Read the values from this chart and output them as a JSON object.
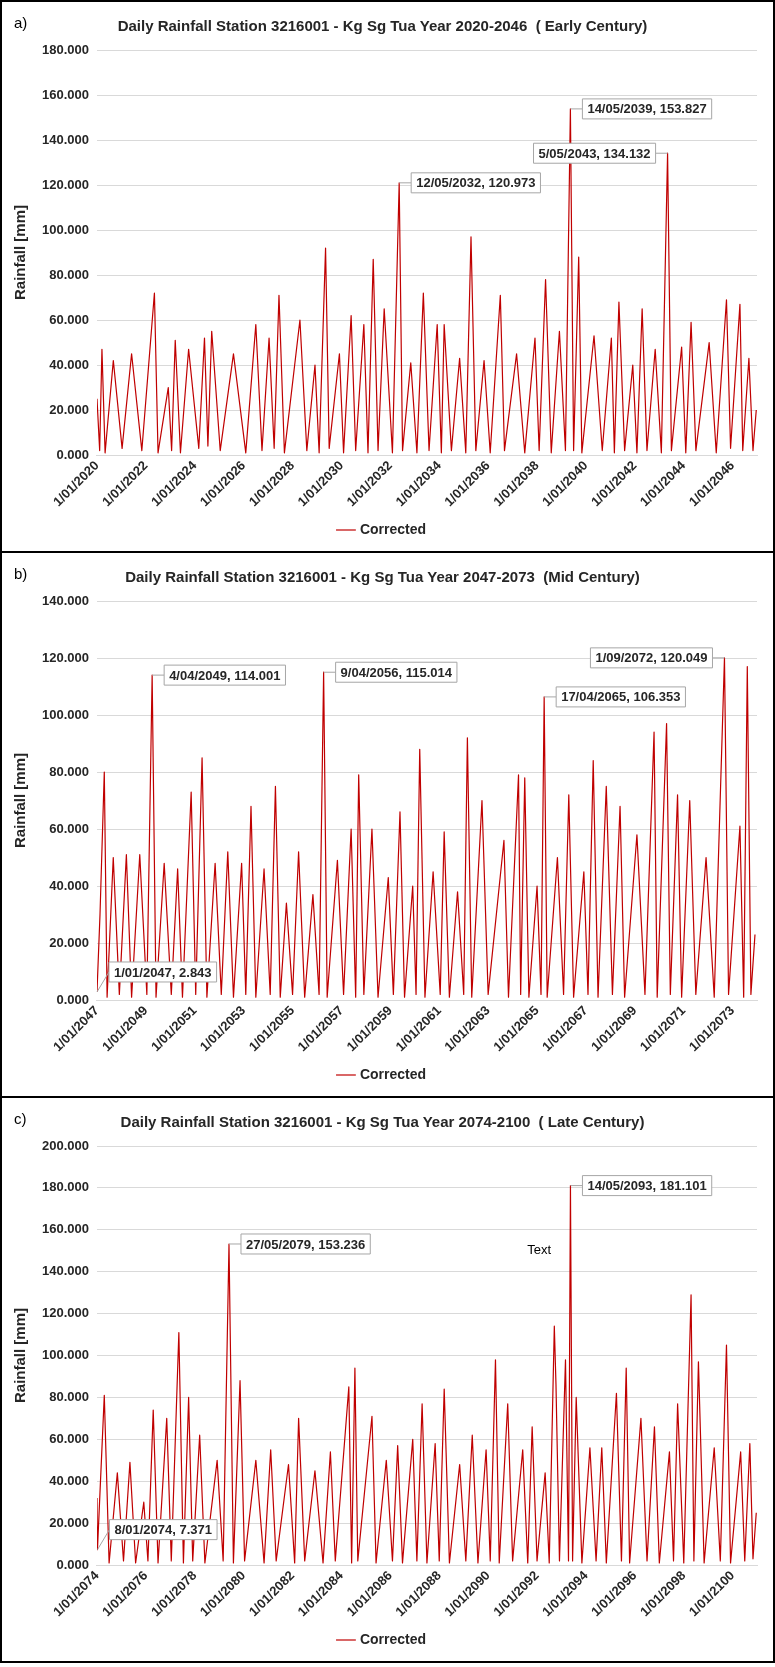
{
  "chart_data": [
    {
      "type": "line",
      "title": "Daily Rainfall Station 3216001 - Kg Sg Tua Year 2020-2046  ( Early Century)",
      "ylabel": "Rainfall [mm]",
      "annotations": [
        "a)",
        {
          "text": "12/05/2032, 120.973",
          "x": "2032-05-12",
          "y": 120.973
        },
        {
          "text": "14/05/2039, 153.827",
          "x": "2039-05-14",
          "y": 153.827
        },
        {
          "text": "5/05/2043, 134.132",
          "x": "2043-05-05",
          "y": 134.132
        }
      ],
      "xlim": [
        "2020-01-01",
        "2046-12-31"
      ],
      "xticks": [
        {
          "value": "2020-01-01",
          "label": "1/01/2020"
        },
        {
          "value": "2022-01-01",
          "label": "1/01/2022"
        },
        {
          "value": "2024-01-01",
          "label": "1/01/2024"
        },
        {
          "value": "2026-01-01",
          "label": "1/01/2026"
        },
        {
          "value": "2028-01-01",
          "label": "1/01/2028"
        },
        {
          "value": "2030-01-01",
          "label": "1/01/2030"
        },
        {
          "value": "2032-01-01",
          "label": "1/01/2032"
        },
        {
          "value": "2034-01-01",
          "label": "1/01/2034"
        },
        {
          "value": "2036-01-01",
          "label": "1/01/2036"
        },
        {
          "value": "2038-01-01",
          "label": "1/01/2038"
        },
        {
          "value": "2040-01-01",
          "label": "1/01/2040"
        },
        {
          "value": "2042-01-01",
          "label": "1/01/2042"
        },
        {
          "value": "2044-01-01",
          "label": "1/01/2044"
        },
        {
          "value": "2046-01-01",
          "label": "1/01/2046"
        }
      ],
      "ylim": [
        0,
        180
      ],
      "yticks": [
        {
          "value": 0,
          "label": "0.000"
        },
        {
          "value": 20,
          "label": "20.000"
        },
        {
          "value": 40,
          "label": "40.000"
        },
        {
          "value": 60,
          "label": "60.000"
        },
        {
          "value": 80,
          "label": "80.000"
        },
        {
          "value": 100,
          "label": "100.000"
        },
        {
          "value": 120,
          "label": "120.000"
        },
        {
          "value": 140,
          "label": "140.000"
        },
        {
          "value": 160,
          "label": "160.000"
        },
        {
          "value": 180,
          "label": "180.000"
        }
      ],
      "grid": "y",
      "legend": "bottom",
      "x": [
        "2020-01-01",
        "2020-02-10",
        "2020-03-15",
        "2020-05-01",
        "2020-09-01",
        "2021-01-10",
        "2021-06-01",
        "2021-11-01",
        "2022-05-08",
        "2022-07-01",
        "2022-12-01",
        "2023-01-20",
        "2023-03-15",
        "2023-06-01",
        "2023-10-01",
        "2024-03-01",
        "2024-05-25",
        "2024-07-15",
        "2024-09-10",
        "2025-01-15",
        "2025-08-01",
        "2026-02-01",
        "2026-07-01",
        "2026-10-01",
        "2027-01-15",
        "2027-04-01",
        "2027-06-12",
        "2027-09-01",
        "2028-04-20",
        "2028-08-01",
        "2028-12-01",
        "2029-02-01",
        "2029-05-08",
        "2029-07-01",
        "2029-12-01",
        "2030-02-01",
        "2030-05-25",
        "2030-08-01",
        "2030-12-01",
        "2031-02-01",
        "2031-04-20",
        "2031-07-01",
        "2031-10-01",
        "2032-02-01",
        "2032-05-12",
        "2032-07-01",
        "2032-11-01",
        "2033-02-01",
        "2033-05-08",
        "2033-08-01",
        "2033-12-01",
        "2034-02-01",
        "2034-03-15",
        "2034-07-01",
        "2034-11-01",
        "2035-02-01",
        "2035-04-20",
        "2035-07-01",
        "2035-11-01",
        "2036-02-01",
        "2036-07-01",
        "2036-09-01",
        "2037-03-01",
        "2037-07-01",
        "2037-12-01",
        "2038-02-01",
        "2038-05-08",
        "2038-08-01",
        "2038-12-01",
        "2039-03-01",
        "2039-05-14",
        "2039-07-01",
        "2039-09-15",
        "2039-11-01",
        "2040-05-01",
        "2040-09-01",
        "2041-01-15",
        "2041-03-01",
        "2041-05-08",
        "2041-08-01",
        "2041-12-01",
        "2042-02-01",
        "2042-04-20",
        "2042-07-01",
        "2042-11-01",
        "2043-02-01",
        "2043-05-05",
        "2043-07-01",
        "2043-12-01",
        "2044-02-01",
        "2044-04-20",
        "2044-07-01",
        "2045-01-15",
        "2045-05-01",
        "2045-10-01",
        "2045-12-01",
        "2046-04-20",
        "2046-06-01",
        "2046-09-01",
        "2046-11-01",
        "2046-12-20"
      ],
      "series": [
        {
          "name": "Corrected",
          "color": "#c00000",
          "values": [
            25,
            2,
            47,
            1,
            42,
            3,
            45,
            2,
            72,
            1,
            30,
            2,
            51,
            1,
            47,
            3,
            52,
            4,
            55,
            2,
            45,
            1,
            58,
            2,
            52,
            3,
            71,
            1,
            60,
            2,
            40,
            1,
            92,
            3,
            45,
            1,
            62,
            2,
            58,
            1,
            87,
            2,
            65,
            1,
            120.973,
            2,
            41,
            1,
            72,
            2,
            58,
            1,
            58,
            2,
            43,
            1,
            97,
            2,
            42,
            1,
            71,
            2,
            45,
            1,
            52,
            2,
            78,
            1,
            55,
            2,
            153.827,
            2,
            88,
            1,
            53,
            2,
            52,
            1,
            68,
            2,
            40,
            1,
            65,
            2,
            47,
            1,
            134.132,
            2,
            48,
            1,
            59,
            2,
            50,
            1,
            69,
            3,
            67,
            2,
            43,
            2,
            20
          ]
        }
      ]
    },
    {
      "type": "line",
      "title": "Daily Rainfall Station 3216001 - Kg Sg Tua Year 2047-2073  (Mid Century)",
      "ylabel": "Rainfall [mm]",
      "annotations": [
        "b)",
        {
          "text": "1/01/2047, 2.843",
          "x": "2047-01-01",
          "y": 2.843
        },
        {
          "text": "4/04/2049, 114.001",
          "x": "2049-04-04",
          "y": 114.001
        },
        {
          "text": "9/04/2056, 115.014",
          "x": "2056-04-09",
          "y": 115.014
        },
        {
          "text": "17/04/2065, 106.353",
          "x": "2065-04-17",
          "y": 106.353
        },
        {
          "text": "1/09/2072, 120.049",
          "x": "2072-09-01",
          "y": 120.049
        }
      ],
      "xlim": [
        "2047-01-01",
        "2073-12-31"
      ],
      "xticks": [
        {
          "value": "2047-01-01",
          "label": "1/01/2047"
        },
        {
          "value": "2049-01-01",
          "label": "1/01/2049"
        },
        {
          "value": "2051-01-01",
          "label": "1/01/2051"
        },
        {
          "value": "2053-01-01",
          "label": "1/01/2053"
        },
        {
          "value": "2055-01-01",
          "label": "1/01/2055"
        },
        {
          "value": "2057-01-01",
          "label": "1/01/2057"
        },
        {
          "value": "2059-01-01",
          "label": "1/01/2059"
        },
        {
          "value": "2061-01-01",
          "label": "1/01/2061"
        },
        {
          "value": "2063-01-01",
          "label": "1/01/2063"
        },
        {
          "value": "2065-01-01",
          "label": "1/01/2065"
        },
        {
          "value": "2067-01-01",
          "label": "1/01/2067"
        },
        {
          "value": "2069-01-01",
          "label": "1/01/2069"
        },
        {
          "value": "2071-01-01",
          "label": "1/01/2071"
        },
        {
          "value": "2073-01-01",
          "label": "1/01/2073"
        }
      ],
      "ylim": [
        0,
        140
      ],
      "yticks": [
        {
          "value": 0,
          "label": "0.000"
        },
        {
          "value": 20,
          "label": "20.000"
        },
        {
          "value": 40,
          "label": "40.000"
        },
        {
          "value": 60,
          "label": "60.000"
        },
        {
          "value": 80,
          "label": "80.000"
        },
        {
          "value": 100,
          "label": "100.000"
        },
        {
          "value": 120,
          "label": "120.000"
        },
        {
          "value": 140,
          "label": "140.000"
        }
      ],
      "grid": "y",
      "legend": "bottom",
      "x": [
        "2047-01-01",
        "2047-02-15",
        "2047-04-20",
        "2047-06-01",
        "2047-09-01",
        "2047-12-01",
        "2048-03-15",
        "2048-06-01",
        "2048-10-01",
        "2049-01-15",
        "2049-04-04",
        "2049-06-01",
        "2049-10-01",
        "2050-01-15",
        "2050-04-20",
        "2050-07-01",
        "2050-11-08",
        "2051-01-15",
        "2051-04-20",
        "2051-07-01",
        "2051-11-01",
        "2052-02-01",
        "2052-05-08",
        "2052-08-01",
        "2052-12-01",
        "2053-02-01",
        "2053-04-20",
        "2053-07-01",
        "2053-11-01",
        "2054-02-01",
        "2054-04-20",
        "2054-07-01",
        "2054-10-01",
        "2055-01-01",
        "2055-04-01",
        "2055-07-01",
        "2055-11-01",
        "2056-02-01",
        "2056-04-09",
        "2056-06-01",
        "2056-11-01",
        "2057-02-01",
        "2057-05-25",
        "2057-08-01",
        "2057-09-15",
        "2057-12-01",
        "2058-04-01",
        "2058-07-01",
        "2058-12-01",
        "2059-02-15",
        "2059-05-25",
        "2059-08-01",
        "2059-12-01",
        "2060-01-20",
        "2060-03-15",
        "2060-06-01",
        "2060-10-01",
        "2061-01-15",
        "2061-03-15",
        "2061-06-01",
        "2061-10-01",
        "2062-01-01",
        "2062-02-25",
        "2062-05-01",
        "2062-10-01",
        "2063-01-01",
        "2063-08-25",
        "2063-11-01",
        "2064-03-30",
        "2064-05-01",
        "2064-07-01",
        "2064-09-01",
        "2065-01-01",
        "2065-03-01",
        "2065-04-17",
        "2065-06-01",
        "2065-11-01",
        "2066-02-01",
        "2066-04-20",
        "2066-07-01",
        "2066-12-01",
        "2067-02-01",
        "2067-04-20",
        "2067-07-01",
        "2067-11-01",
        "2068-02-01",
        "2068-05-25",
        "2068-08-01",
        "2069-02-01",
        "2069-06-01",
        "2069-10-15",
        "2069-12-01",
        "2070-04-20",
        "2070-06-15",
        "2070-10-01",
        "2070-12-01",
        "2071-04-01",
        "2071-07-01",
        "2071-12-01",
        "2072-04-01",
        "2072-09-01",
        "2072-11-01",
        "2073-04-20",
        "2073-06-15",
        "2073-08-08",
        "2073-10-01",
        "2073-12-01"
      ],
      "series": [
        {
          "name": "Corrected",
          "color": "#c00000",
          "values": [
            2.843,
            30,
            80,
            1,
            50,
            2,
            51,
            1,
            51,
            2,
            114.001,
            1,
            48,
            2,
            46,
            1,
            73,
            2,
            85,
            1,
            48,
            2,
            52,
            1,
            48,
            2,
            68,
            1,
            46,
            2,
            75,
            1,
            34,
            2,
            52,
            1,
            37,
            2,
            115.014,
            1,
            49,
            2,
            60,
            1,
            79,
            2,
            60,
            1,
            43,
            2,
            66,
            1,
            40,
            2,
            88,
            1,
            45,
            2,
            59,
            1,
            38,
            2,
            92,
            1,
            70,
            2,
            56,
            1,
            79,
            2,
            78,
            1,
            40,
            2,
            106.353,
            1,
            50,
            2,
            72,
            1,
            45,
            2,
            84,
            1,
            75,
            2,
            68,
            1,
            58,
            2,
            94,
            1,
            97,
            2,
            72,
            1,
            70,
            2,
            50,
            1,
            120.049,
            2,
            61,
            1,
            117,
            2,
            23
          ]
        }
      ]
    },
    {
      "type": "line",
      "title": "Daily Rainfall Station 3216001 - Kg Sg Tua Year 2074-2100  ( Late Century)",
      "ylabel": "Rainfall [mm]",
      "annotations": [
        "c)",
        {
          "text": "8/01/2074, 7.371",
          "x": "2074-01-08",
          "y": 7.371
        },
        {
          "text": "27/05/2079, 153.236",
          "x": "2079-05-27",
          "y": 153.236
        },
        {
          "text": "14/05/2093, 181.101",
          "x": "2093-05-14",
          "y": 181.101
        },
        "Text"
      ],
      "xlim": [
        "2074-01-01",
        "2100-12-31"
      ],
      "xticks": [
        {
          "value": "2074-01-01",
          "label": "1/01/2074"
        },
        {
          "value": "2076-01-01",
          "label": "1/01/2076"
        },
        {
          "value": "2078-01-01",
          "label": "1/01/2078"
        },
        {
          "value": "2080-01-01",
          "label": "1/01/2080"
        },
        {
          "value": "2082-01-01",
          "label": "1/01/2082"
        },
        {
          "value": "2084-01-01",
          "label": "1/01/2084"
        },
        {
          "value": "2086-01-01",
          "label": "1/01/2086"
        },
        {
          "value": "2088-01-01",
          "label": "1/01/2088"
        },
        {
          "value": "2090-01-01",
          "label": "1/01/2090"
        },
        {
          "value": "2092-01-01",
          "label": "1/01/2092"
        },
        {
          "value": "2094-01-01",
          "label": "1/01/2094"
        },
        {
          "value": "2096-01-01",
          "label": "1/01/2096"
        },
        {
          "value": "2098-01-01",
          "label": "1/01/2098"
        },
        {
          "value": "2100-01-01",
          "label": "1/01/2100"
        }
      ],
      "ylim": [
        0,
        200
      ],
      "yticks": [
        {
          "value": 0,
          "label": "0.000"
        },
        {
          "value": 20,
          "label": "20.000"
        },
        {
          "value": 40,
          "label": "40.000"
        },
        {
          "value": 60,
          "label": "60.000"
        },
        {
          "value": 80,
          "label": "80.000"
        },
        {
          "value": 100,
          "label": "100.000"
        },
        {
          "value": 120,
          "label": "120.000"
        },
        {
          "value": 140,
          "label": "140.000"
        },
        {
          "value": 160,
          "label": "160.000"
        },
        {
          "value": 180,
          "label": "180.000"
        },
        {
          "value": 200,
          "label": "200.000"
        }
      ],
      "grid": "y",
      "legend": "bottom",
      "x": [
        "2074-01-01",
        "2074-01-08",
        "2074-04-20",
        "2074-07-01",
        "2074-11-01",
        "2075-02-01",
        "2075-05-08",
        "2075-08-01",
        "2075-12-01",
        "2076-02-01",
        "2076-04-20",
        "2076-07-01",
        "2076-11-08",
        "2077-01-15",
        "2077-05-08",
        "2077-07-15",
        "2077-10-01",
        "2077-12-01",
        "2078-03-15",
        "2078-06-01",
        "2078-12-01",
        "2079-03-01",
        "2079-05-27",
        "2079-08-01",
        "2079-11-08",
        "2080-01-15",
        "2080-07-01",
        "2080-11-01",
        "2081-02-08",
        "2081-05-01",
        "2081-11-01",
        "2082-02-01",
        "2082-04-01",
        "2082-07-01",
        "2082-12-01",
        "2083-04-01",
        "2083-07-20",
        "2083-10-01",
        "2084-04-20",
        "2084-06-01",
        "2084-07-20",
        "2084-09-01",
        "2085-04-01",
        "2085-06-01",
        "2085-11-01",
        "2086-02-01",
        "2086-04-20",
        "2086-07-01",
        "2086-12-01",
        "2087-02-01",
        "2087-04-20",
        "2087-07-01",
        "2087-11-01",
        "2088-01-01",
        "2088-03-15",
        "2088-06-01",
        "2088-11-01",
        "2089-02-01",
        "2089-05-08",
        "2089-08-01",
        "2089-12-01",
        "2090-02-01",
        "2090-04-20",
        "2090-06-15",
        "2090-10-20",
        "2091-01-01",
        "2091-06-01",
        "2091-08-15",
        "2091-10-20",
        "2092-01-01",
        "2092-05-01",
        "2092-07-01",
        "2092-09-15",
        "2092-10-10",
        "2092-12-01",
        "2093-03-01",
        "2093-04-15",
        "2093-05-14",
        "2093-06-15",
        "2093-08-08",
        "2093-11-01",
        "2094-03-01",
        "2094-06-01",
        "2094-08-25",
        "2094-11-01",
        "2095-04-01",
        "2095-06-15",
        "2095-08-25",
        "2095-10-15",
        "2096-04-01",
        "2096-07-01",
        "2096-10-20",
        "2097-01-01",
        "2097-06-01",
        "2097-08-01",
        "2097-10-01",
        "2098-01-01",
        "2098-04-20",
        "2098-06-01",
        "2098-08-08",
        "2098-11-01",
        "2099-04-01",
        "2099-07-01",
        "2099-10-01",
        "2099-12-01",
        "2100-05-01",
        "2100-07-01",
        "2100-09-15",
        "2100-11-01",
        "2100-12-20"
      ],
      "series": [
        {
          "name": "Corrected",
          "color": "#c00000",
          "values": [
            32,
            7.371,
            81,
            1,
            44,
            2,
            49,
            1,
            30,
            2,
            74,
            1,
            70,
            2,
            111,
            1,
            80,
            2,
            62,
            1,
            50,
            2,
            153.236,
            1,
            88,
            2,
            50,
            1,
            55,
            2,
            48,
            1,
            70,
            2,
            45,
            1,
            54,
            2,
            85,
            1,
            94,
            2,
            71,
            1,
            50,
            2,
            57,
            1,
            60,
            2,
            77,
            1,
            58,
            2,
            84,
            1,
            48,
            2,
            62,
            1,
            55,
            2,
            98,
            1,
            77,
            2,
            55,
            1,
            66,
            2,
            44,
            1,
            114,
            86,
            2,
            98,
            2,
            181.101,
            2,
            80,
            1,
            56,
            2,
            56,
            1,
            82,
            2,
            94,
            1,
            70,
            2,
            66,
            1,
            54,
            2,
            77,
            1,
            129,
            2,
            97,
            1,
            56,
            2,
            105,
            1,
            54,
            2,
            58,
            3,
            25
          ]
        }
      ]
    }
  ]
}
